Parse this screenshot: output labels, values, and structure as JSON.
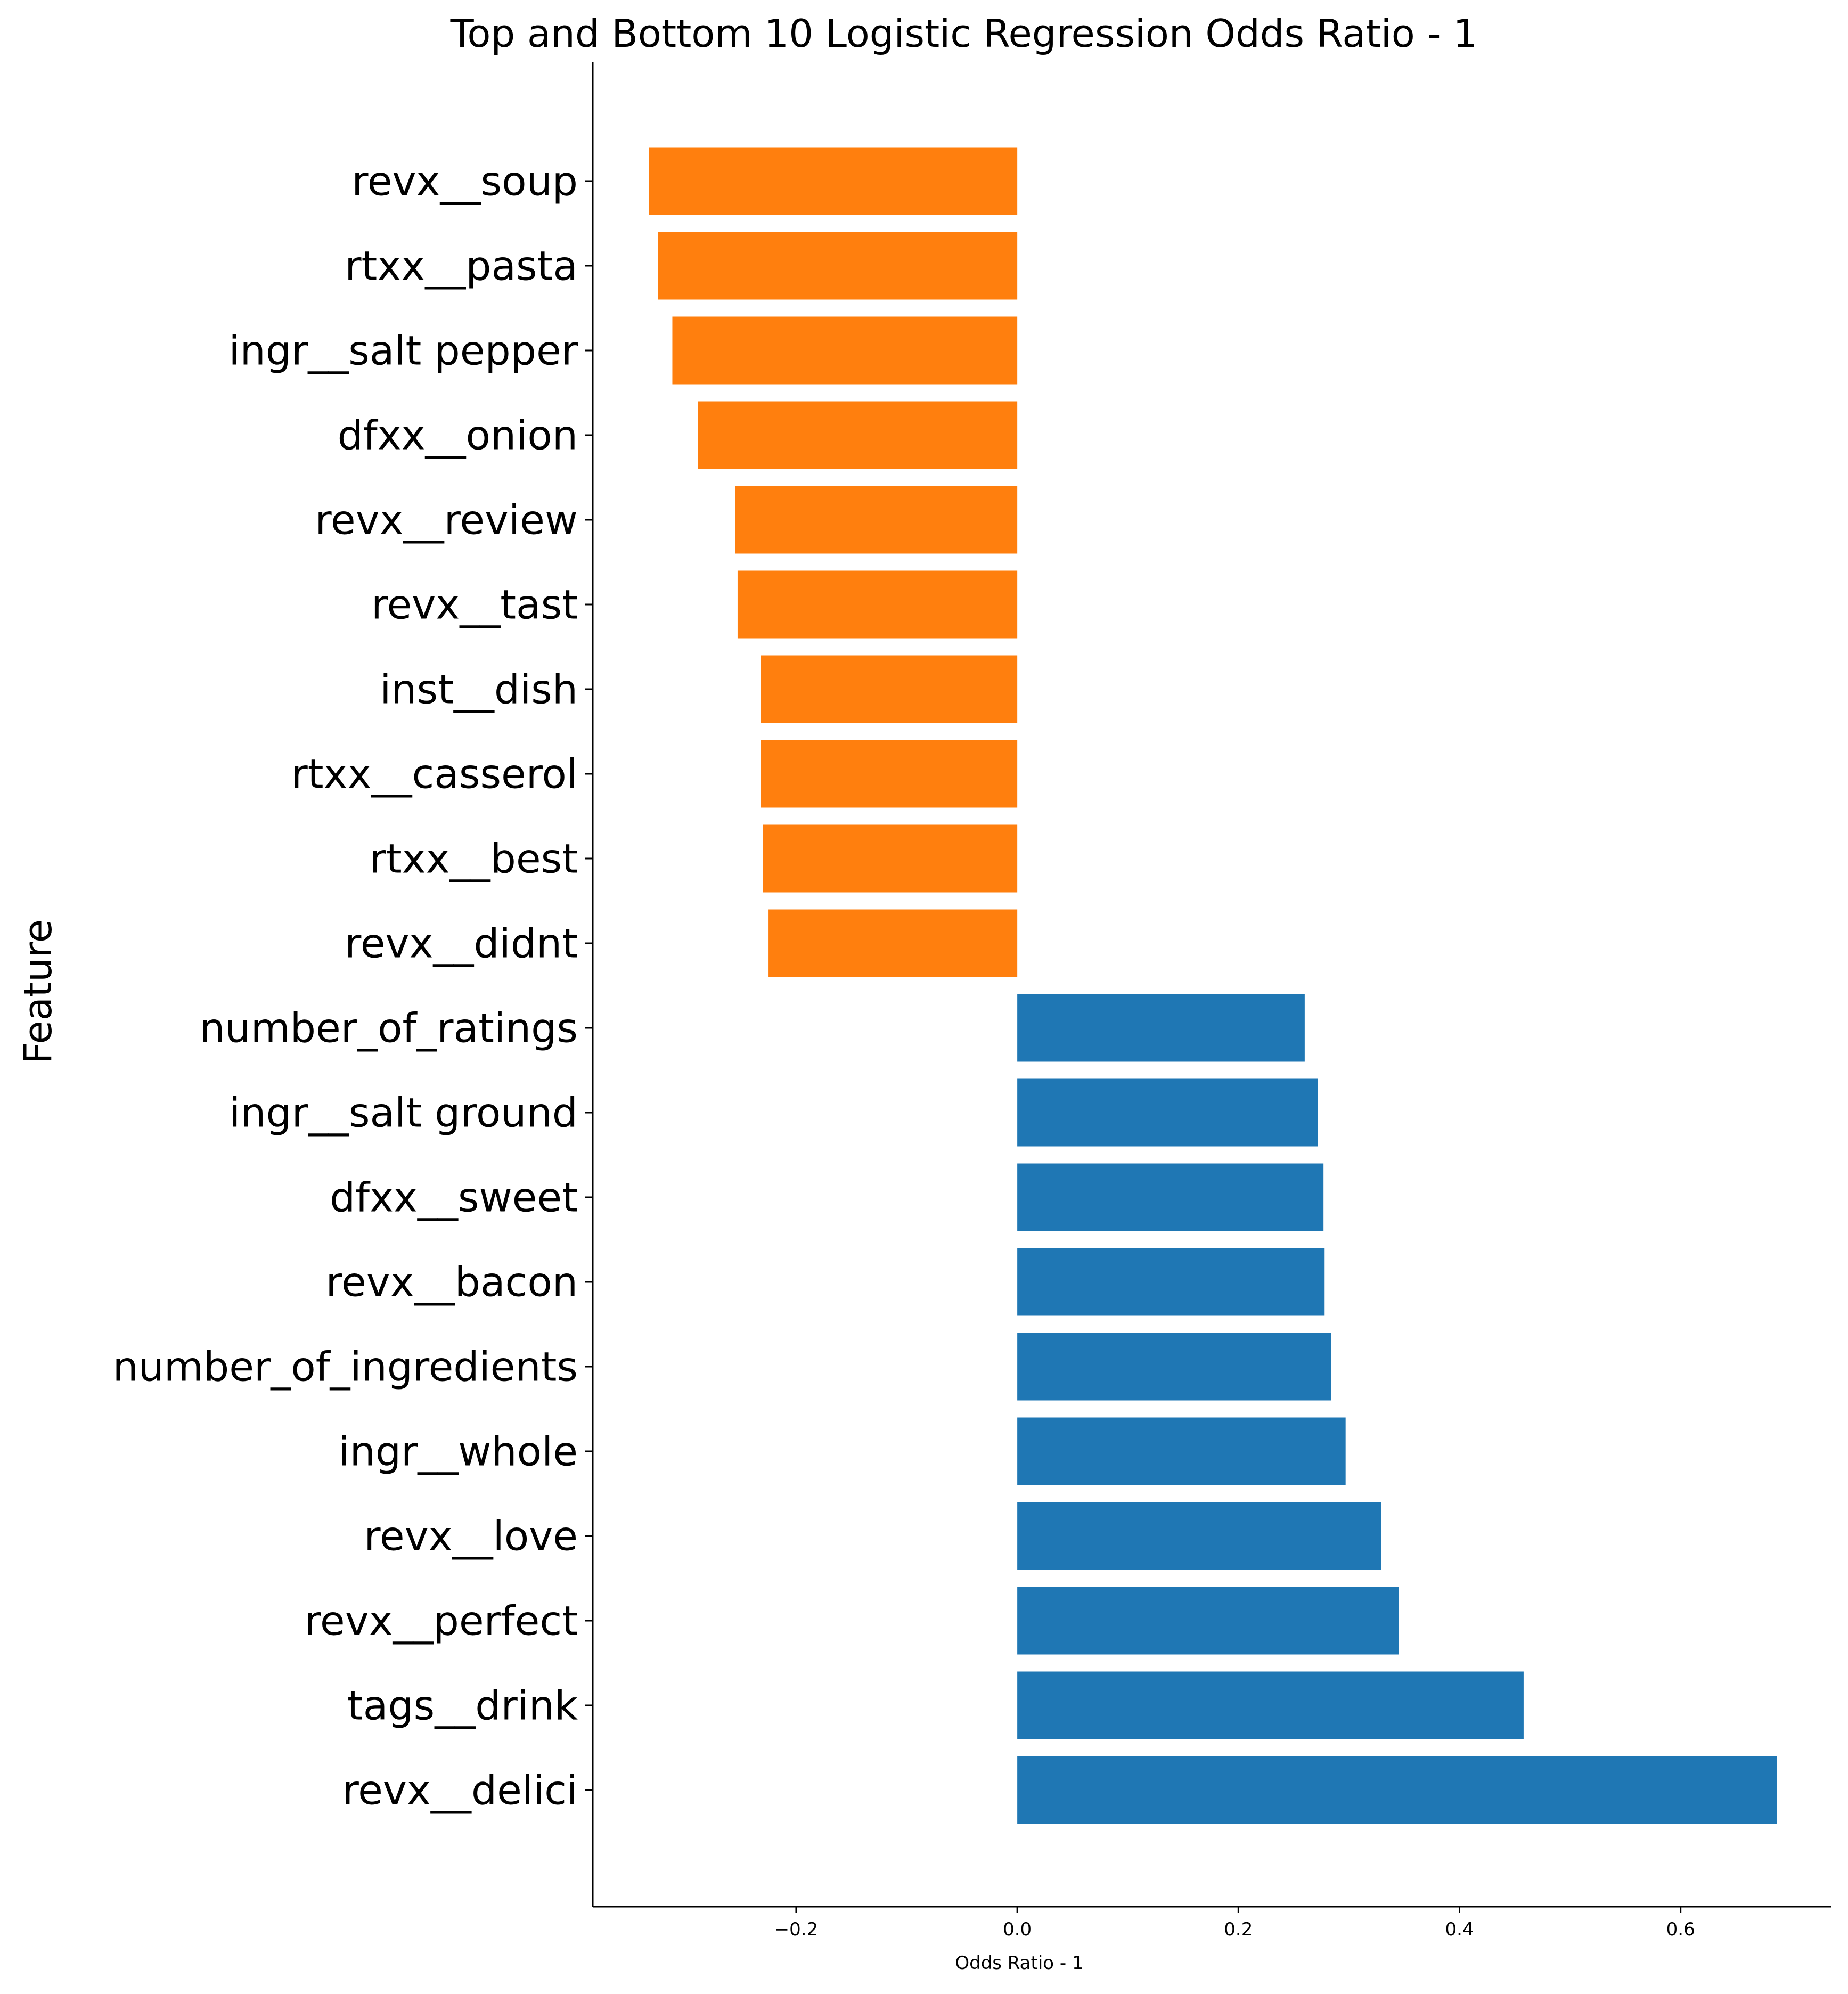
{
  "chart_data": {
    "type": "bar",
    "orientation": "horizontal",
    "title": "Top and Bottom 10 Logistic Regression Odds Ratio - 1",
    "xlabel": "Odds Ratio - 1",
    "ylabel": "Feature",
    "xlim": [
      -0.384,
      0.736
    ],
    "xticks": [
      -0.2,
      0.0,
      0.2,
      0.4,
      0.6
    ],
    "xtick_labels": [
      "−0.2",
      "0.0",
      "0.2",
      "0.4",
      "0.6"
    ],
    "grid": false,
    "legend": false,
    "colors": {
      "negative": "#ff7f0e",
      "positive": "#1f77b4"
    },
    "categories": [
      "revx__soup",
      "rtxx__pasta",
      "ingr__salt pepper",
      "dfxx__onion",
      "revx__review",
      "revx__tast",
      "inst__dish",
      "rtxx__casserol",
      "rtxx__best",
      "revx__didnt",
      "number_of_ratings",
      "ingr__salt ground",
      "dfxx__sweet",
      "revx__bacon",
      "number_of_ingredients",
      "ingr__whole",
      "revx__love",
      "revx__perfect",
      "tags__drink",
      "revx__delici"
    ],
    "values": [
      -0.333,
      -0.325,
      -0.312,
      -0.289,
      -0.255,
      -0.253,
      -0.232,
      -0.232,
      -0.23,
      -0.225,
      0.26,
      0.272,
      0.277,
      0.278,
      0.284,
      0.297,
      0.329,
      0.345,
      0.458,
      0.687
    ]
  }
}
